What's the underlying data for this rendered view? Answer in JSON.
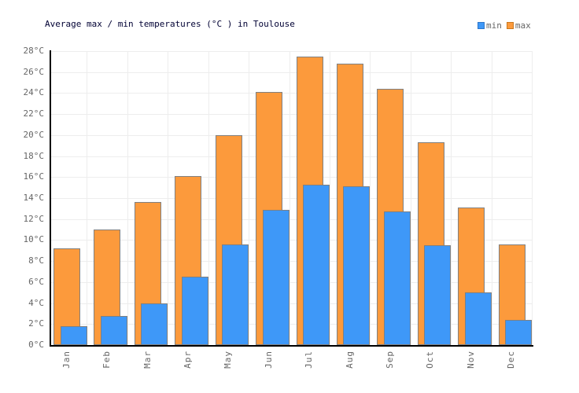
{
  "title": "Average max / min temperatures (°C ) in Toulouse",
  "legend": [
    {
      "label": "min",
      "color": "#3E98F8",
      "border": "#2E77C9"
    },
    {
      "label": "max",
      "color": "#FC9A3C",
      "border": "#C87820"
    }
  ],
  "colors": {
    "title": "#000033",
    "axis": "#000000",
    "gridline": "#EDEDED",
    "tick_text": "#666666",
    "bar_border": "#808080",
    "min_bar": "#3E98F8",
    "max_bar": "#FC9A3C",
    "background": "#FFFFFF"
  },
  "chart_data": {
    "type": "bar",
    "title": "Average max / min temperatures (°C ) in Toulouse",
    "categories": [
      "Jan",
      "Feb",
      "Mar",
      "Apr",
      "May",
      "Jun",
      "Jul",
      "Aug",
      "Sep",
      "Oct",
      "Nov",
      "Dec"
    ],
    "series": [
      {
        "name": "min",
        "color": "#3E98F8",
        "values": [
          1.8,
          2.8,
          4.0,
          6.5,
          9.6,
          12.9,
          15.3,
          15.1,
          12.7,
          9.5,
          5.0,
          2.4
        ]
      },
      {
        "name": "max",
        "color": "#FC9A3C",
        "values": [
          9.2,
          11.0,
          13.6,
          16.1,
          20.0,
          24.1,
          27.5,
          26.8,
          24.4,
          19.3,
          13.1,
          9.6
        ]
      }
    ],
    "xlabel": "",
    "ylabel": "",
    "ylim": [
      0,
      28
    ],
    "ytick_step": 2,
    "yticks": [
      "0°C",
      "2°C",
      "4°C",
      "6°C",
      "8°C",
      "10°C",
      "12°C",
      "14°C",
      "16°C",
      "18°C",
      "20°C",
      "22°C",
      "24°C",
      "26°C",
      "28°C"
    ],
    "grid": true,
    "legend_position": "top-right",
    "bar_style": "overlapping, min drawn in front of max, offset right"
  }
}
